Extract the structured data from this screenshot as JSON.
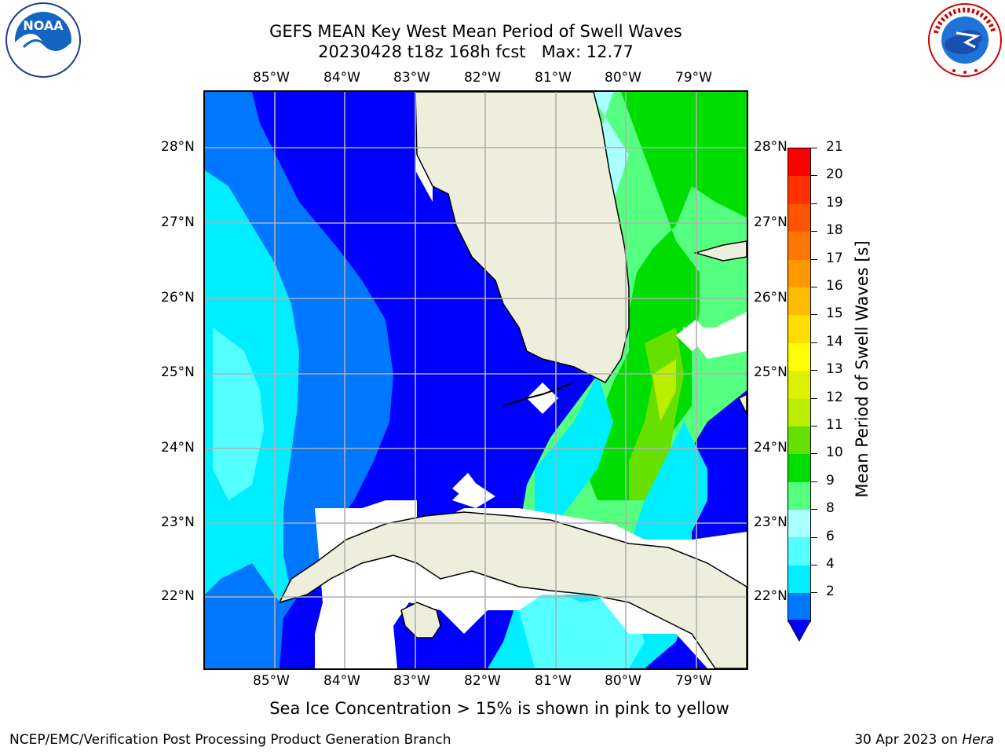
{
  "title": {
    "line1": "GEFS MEAN Key West Mean Period of Swell Waves",
    "line2": "20230428 t18z 168h fcst   Max: 12.77"
  },
  "logos": {
    "left": {
      "name": "NOAA",
      "ring_text": "NATIONAL OCEANIC AND ATMOSPHERIC ADMINISTRATION · U.S. DEPARTMENT OF COMMERCE",
      "text": "NOAA"
    },
    "right": {
      "name": "National Weather Service",
      "ring_text": "NATIONAL WEATHER SERVICE"
    }
  },
  "map": {
    "lon_labels": [
      "85°W",
      "84°W",
      "83°W",
      "82°W",
      "81°W",
      "80°W",
      "79°W"
    ],
    "lat_labels": [
      "28°N",
      "27°N",
      "26°N",
      "25°N",
      "24°N",
      "23°N",
      "22°N"
    ],
    "land_color": "#eeeedd",
    "grid_color": "#b0b0b0"
  },
  "colorbar": {
    "title": "Mean Period of Swell Waves [s]",
    "ticks": [
      "21",
      "20",
      "19",
      "18",
      "17",
      "16",
      "15",
      "14",
      "13",
      "12",
      "11",
      "10",
      "9",
      "8",
      "6",
      "4",
      "2"
    ],
    "colors_top_to_bottom": [
      "#ff0000",
      "#ff3300",
      "#ff5500",
      "#ff7700",
      "#ff9900",
      "#ffbb00",
      "#ffdd00",
      "#ffff00",
      "#ddf000",
      "#bbee00",
      "#66e000",
      "#00dd00",
      "#55ff80",
      "#aaffff",
      "#55ffff",
      "#00eeff",
      "#0077ff"
    ],
    "extend_color": "#0000ff"
  },
  "subtitle": "Sea Ice Concentration > 15% is shown in pink to yellow",
  "footer": {
    "left": "NCEP/EMC/Verification Post Processing Product Generation Branch",
    "right_date": "30 Apr 2023 on ",
    "right_host": "Hera"
  }
}
